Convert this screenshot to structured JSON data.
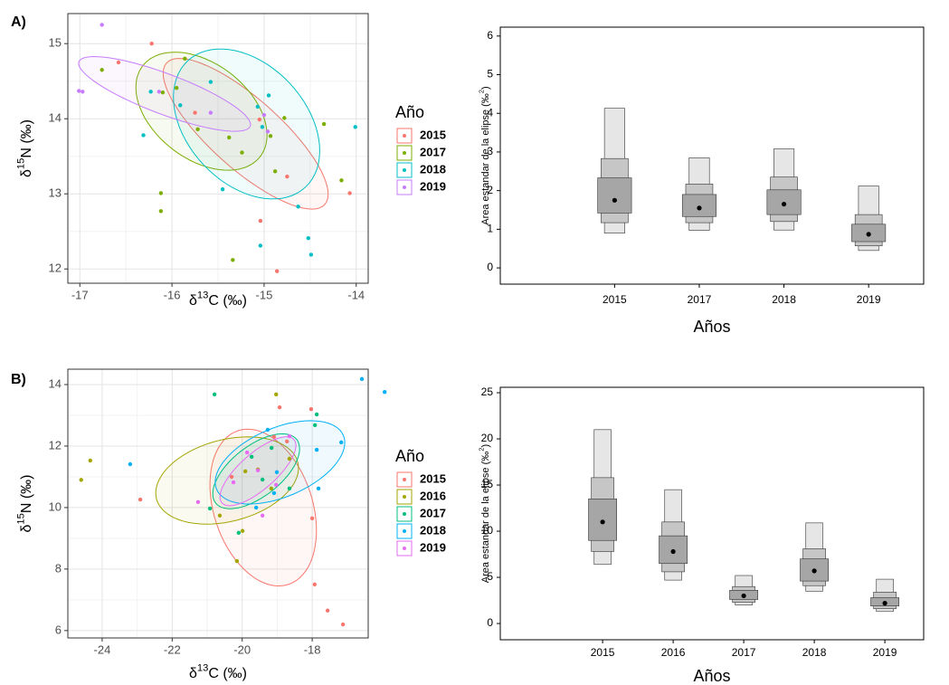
{
  "chart_data": [
    {
      "type": "scatter",
      "tag": "A)",
      "x_label": [
        "δ",
        "13",
        "C (‰)"
      ],
      "y_label": [
        "δ",
        "15",
        "N (‰)"
      ],
      "legend_title": "Año",
      "xlim": [
        -17.13,
        -13.87
      ],
      "ylim": [
        11.81,
        15.4
      ],
      "xticks": [
        -17,
        -16,
        -15,
        -14
      ],
      "yticks": [
        12,
        13,
        14,
        15
      ],
      "grid": true,
      "series": [
        {
          "name": "2015",
          "color": "#F8766D",
          "x": [
            -16.22,
            -16.58,
            -15.75,
            -14.75,
            -14.86,
            -14.07,
            -15.04,
            -15.05
          ],
          "y": [
            15.0,
            14.75,
            14.08,
            13.23,
            11.97,
            13.01,
            12.64,
            13.99
          ],
          "ellipse": {
            "center": [
              -15.2,
              13.8
            ],
            "axis1": [
              0.86,
              -0.94
            ],
            "axis2": [
              0.25,
              0.35
            ]
          }
        },
        {
          "name": "2017",
          "color": "#7CAE00",
          "x": [
            -16.76,
            -15.86,
            -15.95,
            -16.12,
            -16.12,
            -15.72,
            -15.38,
            -15.24,
            -15.34,
            -14.93,
            -14.88,
            -14.35,
            -14.16,
            -14.78,
            -16.1
          ],
          "y": [
            14.65,
            14.8,
            14.41,
            13.01,
            12.77,
            13.86,
            13.75,
            13.55,
            12.12,
            13.77,
            13.3,
            13.93,
            13.18,
            14.01,
            14.35
          ],
          "ellipse": {
            "center": [
              -15.68,
              14.1
            ],
            "axis1": [
              0.62,
              -0.63
            ],
            "axis2": [
              0.35,
              0.47
            ]
          }
        },
        {
          "name": "2018",
          "color": "#00BFC4",
          "x": [
            -16.23,
            -16.31,
            -15.91,
            -15.58,
            -14.95,
            -15.45,
            -15.04,
            -14.63,
            -14.52,
            -14.49,
            -14.01,
            -15.02,
            -15.07
          ],
          "y": [
            14.36,
            13.78,
            14.18,
            14.49,
            14.31,
            13.06,
            12.31,
            12.83,
            12.41,
            12.19,
            13.89,
            13.89,
            14.16
          ],
          "ellipse": {
            "center": [
              -15.19,
              13.93
            ],
            "axis1": [
              0.64,
              -0.84
            ],
            "axis2": [
              0.47,
              0.54
            ]
          }
        },
        {
          "name": "2019",
          "color": "#C77CFF",
          "x": [
            -16.76,
            -17.01,
            -16.97,
            -15.58,
            -15.0,
            -14.96,
            -16.14
          ],
          "y": [
            15.25,
            14.37,
            14.36,
            14.08,
            14.05,
            13.83,
            14.36
          ],
          "ellipse": {
            "center": [
              -16.08,
              14.33
            ],
            "axis1": [
              0.93,
              -0.43
            ],
            "axis2": [
              0.08,
              0.25
            ]
          }
        }
      ]
    },
    {
      "type": "box",
      "x_label": "Años",
      "y_label": [
        "Area estandar de la elipse (‰",
        "2",
        ")"
      ],
      "ylim": [
        -0.42,
        6.23
      ],
      "yticks": [
        0,
        1,
        2,
        3,
        4,
        5,
        6
      ],
      "categories": [
        "2015",
        "2017",
        "2018",
        "2019"
      ],
      "box_colors": [
        "#e6e6e6",
        "#c6c6c6",
        "#a6a6a6"
      ],
      "ci95": [
        [
          0.9,
          4.13
        ],
        [
          0.97,
          2.85
        ],
        [
          0.98,
          3.08
        ],
        [
          0.45,
          2.12
        ]
      ],
      "ci75": [
        [
          1.17,
          2.83
        ],
        [
          1.17,
          2.17
        ],
        [
          1.2,
          2.35
        ],
        [
          0.57,
          1.38
        ]
      ],
      "ci50": [
        [
          1.42,
          2.33
        ],
        [
          1.33,
          1.9
        ],
        [
          1.38,
          2.02
        ],
        [
          0.68,
          1.13
        ]
      ],
      "mode": [
        1.75,
        1.55,
        1.65,
        0.87
      ]
    },
    {
      "type": "scatter",
      "tag": "B)",
      "x_label": [
        "δ",
        "13",
        "C (‰)"
      ],
      "y_label": [
        "δ",
        "15",
        "N (‰)"
      ],
      "legend_title": "Año",
      "xlim": [
        -24.98,
        -16.4
      ],
      "ylim": [
        5.76,
        14.5
      ],
      "xticks": [
        -24,
        -22,
        -20,
        -18
      ],
      "yticks": [
        6,
        8,
        10,
        12,
        14
      ],
      "grid": true,
      "series": [
        {
          "name": "2015",
          "color": "#F8766D",
          "x": [
            -22.91,
            -18.0,
            -17.93,
            -17.56,
            -17.12,
            -18.03,
            -18.72,
            -18.93,
            -20.3,
            -19.09
          ],
          "y": [
            10.26,
            9.65,
            7.5,
            6.65,
            6.2,
            13.2,
            12.15,
            13.26,
            11.0,
            12.3
          ],
          "ellipse": {
            "center": [
              -19.4,
              10.0
            ],
            "axis1": [
              0.72,
              -2.5
            ],
            "axis2": [
              1.34,
              0.5
            ]
          }
        },
        {
          "name": "2016",
          "color": "#A3A500",
          "x": [
            -24.6,
            -24.34,
            -19.03,
            -20.15,
            -19.99,
            -19.55,
            -18.65,
            -19.91,
            -19.17,
            -20.64
          ],
          "y": [
            10.9,
            11.53,
            13.68,
            8.26,
            9.24,
            11.24,
            11.59,
            11.18,
            10.62,
            9.74
          ],
          "ellipse": {
            "center": [
              -20.43,
              10.88
            ],
            "axis1": [
              2.02,
              0.59
            ],
            "axis2": [
              0.28,
              -1.29
            ]
          }
        },
        {
          "name": "2017",
          "color": "#00BF7D",
          "x": [
            -20.79,
            -20.92,
            -20.1,
            -18.65,
            -17.92,
            -19.73,
            -19.16,
            -17.87,
            -19.42
          ],
          "y": [
            13.68,
            9.97,
            9.18,
            10.62,
            12.68,
            11.65,
            11.94,
            13.03,
            10.91
          ],
          "ellipse": {
            "center": [
              -19.6,
              11.18
            ],
            "axis1": [
              1.16,
              1.03
            ],
            "axis2": [
              0.44,
              -0.65
            ]
          }
        },
        {
          "name": "2018",
          "color": "#00B0F6",
          "x": [
            -23.2,
            -16.58,
            -15.93,
            -17.17,
            -17.87,
            -17.82,
            -19.09,
            -19.6,
            -19.27,
            -19.01
          ],
          "y": [
            11.41,
            14.18,
            13.76,
            12.12,
            11.88,
            10.62,
            10.47,
            10.0,
            12.53,
            11.15
          ],
          "ellipse": {
            "center": [
              -18.92,
              11.47
            ],
            "axis1": [
              1.81,
              0.88
            ],
            "axis2": [
              0.39,
              -1.03
            ]
          }
        },
        {
          "name": "2019",
          "color": "#E76BF3",
          "x": [
            -21.26,
            -20.25,
            -19.86,
            -19.42,
            -19.55,
            -18.65,
            -19.03
          ],
          "y": [
            10.18,
            10.82,
            11.79,
            9.74,
            11.21,
            12.32,
            10.74
          ],
          "ellipse": {
            "center": [
              -19.55,
              11.18
            ],
            "axis1": [
              1.03,
              1.03
            ],
            "axis2": [
              0.34,
              -0.44
            ]
          }
        }
      ]
    },
    {
      "type": "box",
      "x_label": "Años",
      "y_label": [
        "Area estandar de la elipse (‰",
        "2",
        ")"
      ],
      "ylim": [
        -1.76,
        25.59
      ],
      "yticks": [
        0,
        5,
        10,
        15,
        20,
        25
      ],
      "categories": [
        "2015",
        "2016",
        "2017",
        "2018",
        "2019"
      ],
      "box_colors": [
        "#e6e6e6",
        "#c6c6c6",
        "#a6a6a6"
      ],
      "ci95": [
        [
          6.4,
          21
        ],
        [
          4.7,
          14.5
        ],
        [
          2,
          5.2
        ],
        [
          3.5,
          10.9
        ],
        [
          1.3,
          4.8
        ]
      ],
      "ci75": [
        [
          7.8,
          15.8
        ],
        [
          5.6,
          11
        ],
        [
          2.3,
          4
        ],
        [
          4.1,
          8.1
        ],
        [
          1.6,
          3.4
        ]
      ],
      "ci50": [
        [
          9,
          13.5
        ],
        [
          6.5,
          9.5
        ],
        [
          2.6,
          3.6
        ],
        [
          4.6,
          7
        ],
        [
          1.9,
          2.8
        ]
      ],
      "mode": [
        11,
        7.8,
        3,
        5.7,
        2.2
      ]
    }
  ]
}
